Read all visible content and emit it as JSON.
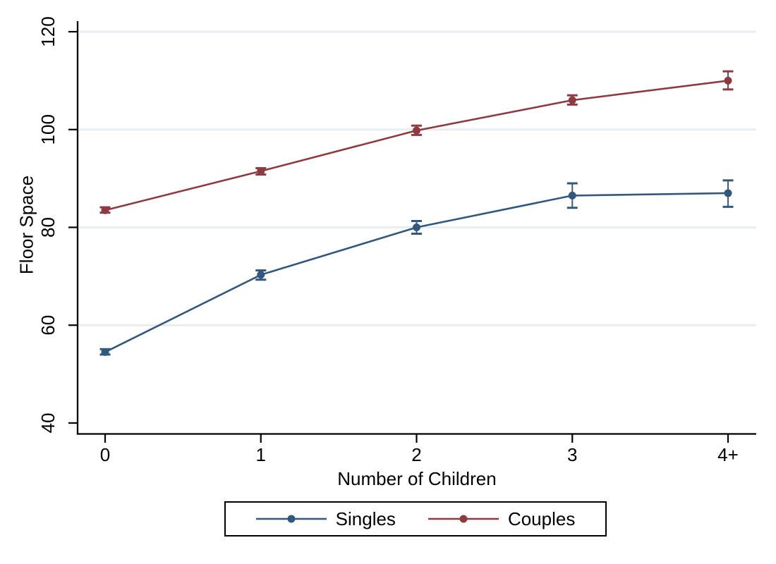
{
  "chart_data": {
    "type": "line",
    "title": "",
    "xlabel": "Number of Children",
    "ylabel": "Floor Space",
    "categories": [
      "0",
      "1",
      "2",
      "3",
      "4+"
    ],
    "yticks": [
      40,
      60,
      80,
      100,
      120
    ],
    "ylim": [
      40,
      120
    ],
    "grid": true,
    "legend_position": "bottom",
    "series": [
      {
        "name": "Singles",
        "color": "#33587e",
        "values": [
          54.5,
          70.3,
          80.0,
          86.5,
          87.0
        ],
        "ci_low": [
          54.0,
          69.3,
          78.7,
          84.0,
          84.2
        ],
        "ci_high": [
          55.1,
          71.2,
          81.3,
          89.0,
          89.6
        ]
      },
      {
        "name": "Couples",
        "color": "#8d3b41",
        "values": [
          83.5,
          91.5,
          99.8,
          106.0,
          110.0
        ],
        "ci_low": [
          83.0,
          90.8,
          98.9,
          105.1,
          108.2
        ],
        "ci_high": [
          84.1,
          92.1,
          100.8,
          107.0,
          111.9
        ]
      }
    ],
    "styles": {
      "error_stem_color": "#45597a",
      "gridline_color": "#e9eef3",
      "axis_color": "#000000",
      "text_color": "#000000",
      "background": "#ffffff"
    }
  }
}
